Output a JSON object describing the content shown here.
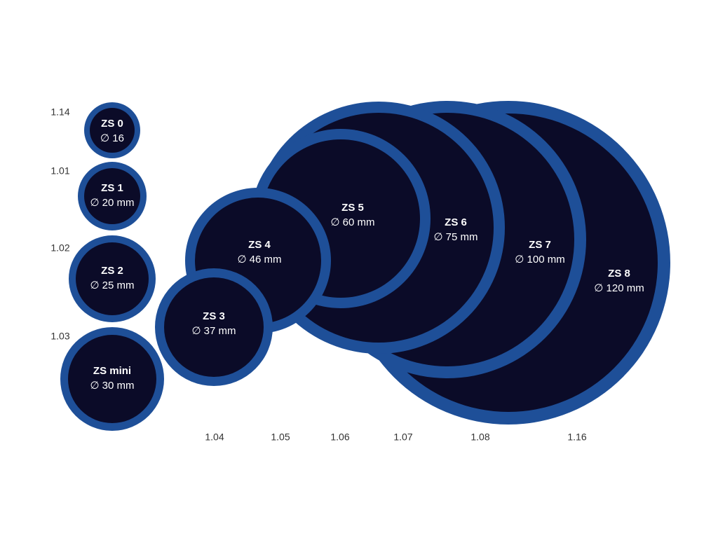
{
  "patches": [
    {
      "name": "ZS 0",
      "size": "∅ 16",
      "code": "1.14"
    },
    {
      "name": "ZS 1",
      "size": "∅ 20 mm",
      "code": "1.01"
    },
    {
      "name": "ZS 2",
      "size": "∅ 25 mm",
      "code": "1.02"
    },
    {
      "name": "ZS mini",
      "size": "∅ 30 mm",
      "code": "1.03"
    },
    {
      "name": "ZS 3",
      "size": "∅ 37 mm",
      "code": "1.04"
    },
    {
      "name": "ZS 4",
      "size": "∅ 46 mm",
      "code": "1.05"
    },
    {
      "name": "ZS 5",
      "size": "∅ 60 mm",
      "code": "1.06"
    },
    {
      "name": "ZS 6",
      "size": "∅ 75 mm",
      "code": "1.07"
    },
    {
      "name": "ZS 7",
      "size": "∅ 100 mm",
      "code": "1.08"
    },
    {
      "name": "ZS 8",
      "size": "∅ 120 mm",
      "code": "1.16"
    }
  ]
}
